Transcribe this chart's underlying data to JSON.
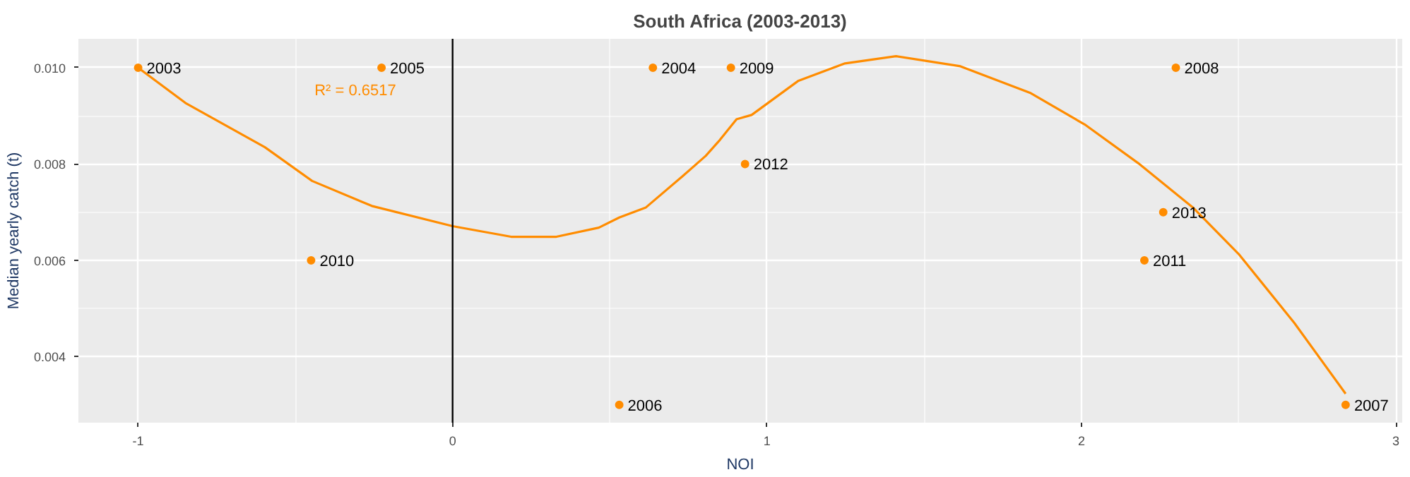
{
  "chart_data": {
    "type": "scatter",
    "title": "South Africa (2003-2013)",
    "xlabel": "NOI",
    "ylabel": "Median yearly catch (t)",
    "xlim": [
      -1.19,
      3.02
    ],
    "ylim": [
      0.00263,
      0.0106
    ],
    "xticks": [
      -1,
      0,
      1,
      2,
      3
    ],
    "yticks": [
      {
        "value": 0.004,
        "label": "0.004"
      },
      {
        "value": 0.006,
        "label": "0.006"
      },
      {
        "value": 0.008,
        "label": "0.008"
      },
      {
        "value": 0.01,
        "label": "0.010"
      }
    ],
    "grid": true,
    "series": [
      {
        "marker": "circle",
        "color": "#ff8c00",
        "x": [
          -1.0,
          -0.226,
          0.637,
          0.885,
          0.93,
          -0.45,
          0.53,
          2.3,
          2.26,
          2.2,
          2.84
        ],
        "values": [
          0.01,
          0.01,
          0.01,
          0.01,
          0.008,
          0.006,
          0.003,
          0.01,
          0.007,
          0.006,
          0.003
        ]
      },
      {
        "type": "line",
        "color": "#ff8c00",
        "x": [
          -1.0,
          -0.85,
          -0.597,
          -0.447,
          -0.257,
          0.0,
          0.186,
          0.33,
          0.465,
          0.53,
          0.615,
          0.73,
          0.805,
          0.85,
          0.903,
          0.951,
          1.1,
          1.248,
          1.41,
          1.615,
          1.836,
          2.013,
          2.18,
          2.354,
          2.5,
          2.677,
          2.84
        ],
        "values": [
          0.01,
          0.00927,
          0.00835,
          0.00765,
          0.00713,
          0.00671,
          0.00649,
          0.00649,
          0.00668,
          0.00689,
          0.0071,
          0.00774,
          0.00817,
          0.0085,
          0.00893,
          0.00902,
          0.00973,
          0.01009,
          0.01024,
          0.01003,
          0.00948,
          0.00881,
          0.00802,
          0.0071,
          0.00613,
          0.0047,
          0.00323
        ]
      }
    ],
    "ref_lines": [
      {
        "axis": "x",
        "value": 0,
        "color": "#000000"
      }
    ],
    "annotations": [
      "R² = 0.6517",
      {
        "text": "2003",
        "x": -1.0,
        "y": 0.01
      },
      {
        "text": "2005",
        "x": -0.226,
        "y": 0.01
      },
      {
        "text": "2004",
        "x": 0.637,
        "y": 0.01
      },
      {
        "text": "2009",
        "x": 0.885,
        "y": 0.01
      },
      {
        "text": "2012",
        "x": 0.93,
        "y": 0.008
      },
      {
        "text": "2010",
        "x": -0.45,
        "y": 0.006
      },
      {
        "text": "2006",
        "x": 0.53,
        "y": 0.003
      },
      {
        "text": "2008",
        "x": 2.3,
        "y": 0.01
      },
      {
        "text": "2013",
        "x": 2.26,
        "y": 0.007
      },
      {
        "text": "2011",
        "x": 2.2,
        "y": 0.006
      },
      {
        "text": "2007",
        "x": 2.84,
        "y": 0.003
      }
    ]
  }
}
